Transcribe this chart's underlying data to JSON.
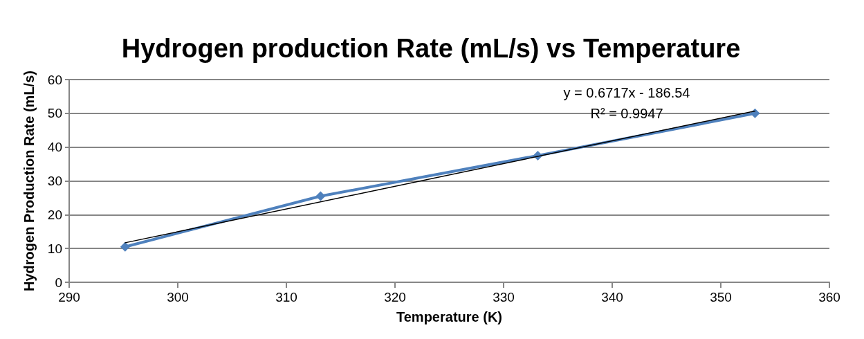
{
  "chart_data": {
    "type": "line",
    "title": "Hydrogen production Rate (mL/s) vs Temperature",
    "xlabel": "Temperature (K)",
    "ylabel": "Hydrogen Production Rate (mL/s)",
    "x": [
      295.15,
      313.15,
      333.15,
      353.15
    ],
    "series": [
      {
        "color": "#4f81bd",
        "values": [
          10.5,
          25.5,
          37.5,
          50
        ],
        "marker": "diamond"
      },
      {
        "type": "line",
        "color": "#000000",
        "x": [
          295.15,
          353.15
        ],
        "values": [
          11.7,
          50.7
        ],
        "marker": "none"
      }
    ],
    "annotations": [
      "y = 0.6717x - 186.54",
      "R² = 0.9947"
    ],
    "xlim": [
      290,
      360
    ],
    "xticks": [
      290,
      300,
      310,
      320,
      330,
      340,
      350,
      360
    ],
    "ylim": [
      0,
      60
    ],
    "yticks": [
      0,
      10,
      20,
      30,
      40,
      50,
      60
    ],
    "grid": "y"
  }
}
